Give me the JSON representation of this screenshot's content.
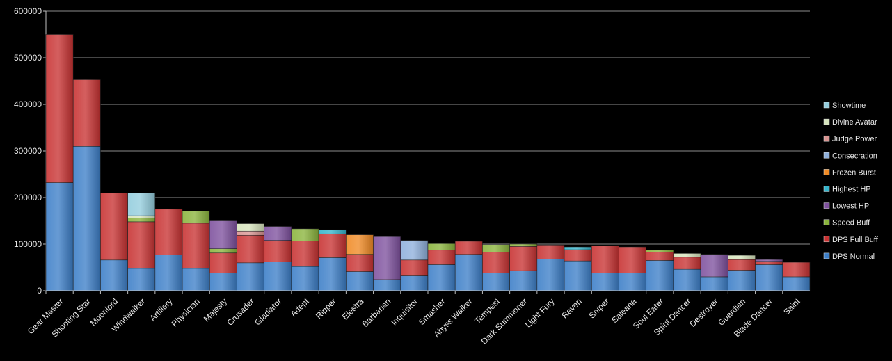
{
  "chart_data": {
    "type": "bar",
    "stacked": true,
    "title": "",
    "xlabel": "",
    "ylabel": "",
    "ylim": [
      0,
      600000
    ],
    "yticks": [
      0,
      100000,
      200000,
      300000,
      400000,
      500000,
      600000
    ],
    "grid": true,
    "legend_position": "right",
    "categories": [
      "Gear Master",
      "Shooting Star",
      "Moonlord",
      "Windwalker",
      "Artillery",
      "Physician",
      "Majesty",
      "Crusader",
      "Gladiator",
      "Adept",
      "Ripper",
      "Elestra",
      "Barbarian",
      "Inquisitor",
      "Smasher",
      "Abyss Walker",
      "Tempest",
      "Dark Summoner",
      "Light Fury",
      "Raven",
      "Sniper",
      "Saleana",
      "Soul Eater",
      "Spirit Dancer",
      "Destroyer",
      "Guardian",
      "Blade Dancer",
      "Saint"
    ],
    "series": [
      {
        "name": "DPS Normal",
        "color": "#3d7fc8",
        "values": [
          232000,
          310000,
          66000,
          48000,
          77000,
          48000,
          38000,
          60000,
          62000,
          52000,
          71000,
          41000,
          24000,
          32000,
          56000,
          78000,
          38000,
          43000,
          68000,
          64000,
          38000,
          38000,
          65000,
          46000,
          30000,
          44000,
          56000,
          30000
        ]
      },
      {
        "name": "DPS Full Buff",
        "color": "#c83232",
        "values": [
          318000,
          143000,
          144000,
          100000,
          98000,
          97000,
          43000,
          59000,
          46000,
          55000,
          51000,
          37000,
          0,
          34000,
          31000,
          28000,
          45000,
          52000,
          30000,
          24000,
          59000,
          56000,
          18000,
          26000,
          0,
          23000,
          7000,
          31000
        ]
      },
      {
        "name": "Speed Buff",
        "color": "#8ab43c",
        "values": [
          0,
          0,
          0,
          8000,
          0,
          26000,
          9000,
          0,
          0,
          26000,
          0,
          0,
          0,
          0,
          14000,
          0,
          16000,
          5000,
          0,
          0,
          0,
          0,
          4000,
          0,
          0,
          0,
          0,
          0
        ]
      },
      {
        "name": "Lowest HP",
        "color": "#7e519e",
        "values": [
          0,
          0,
          0,
          0,
          0,
          0,
          60000,
          0,
          30000,
          0,
          0,
          0,
          92000,
          0,
          0,
          0,
          0,
          0,
          0,
          0,
          0,
          0,
          0,
          0,
          48000,
          0,
          4000,
          0
        ]
      },
      {
        "name": "Highest HP",
        "color": "#35b5cc",
        "values": [
          0,
          0,
          0,
          0,
          0,
          0,
          0,
          0,
          0,
          0,
          9000,
          0,
          0,
          0,
          0,
          0,
          0,
          0,
          0,
          6000,
          0,
          0,
          0,
          0,
          0,
          0,
          0,
          0
        ]
      },
      {
        "name": "Frozen Burst",
        "color": "#f08a24",
        "values": [
          0,
          0,
          0,
          0,
          0,
          0,
          0,
          0,
          0,
          0,
          0,
          42000,
          0,
          0,
          0,
          0,
          0,
          0,
          0,
          0,
          0,
          0,
          0,
          0,
          0,
          0,
          0,
          0
        ]
      },
      {
        "name": "Consecration",
        "color": "#8fb0dc",
        "values": [
          0,
          0,
          0,
          0,
          0,
          0,
          0,
          0,
          0,
          0,
          0,
          0,
          0,
          42000,
          0,
          0,
          0,
          0,
          0,
          0,
          0,
          0,
          0,
          0,
          0,
          0,
          0,
          0
        ]
      },
      {
        "name": "Judge Power",
        "color": "#d99592",
        "values": [
          0,
          0,
          0,
          0,
          0,
          0,
          0,
          9000,
          0,
          0,
          0,
          0,
          0,
          0,
          0,
          0,
          0,
          0,
          0,
          0,
          0,
          0,
          0,
          0,
          0,
          0,
          0,
          0
        ]
      },
      {
        "name": "Divine Avatar",
        "color": "#d7e4bd",
        "values": [
          0,
          0,
          0,
          5000,
          0,
          0,
          0,
          16000,
          0,
          0,
          0,
          0,
          0,
          0,
          0,
          0,
          0,
          0,
          0,
          0,
          0,
          0,
          0,
          8000,
          0,
          9000,
          0,
          0
        ]
      },
      {
        "name": "Showtime",
        "color": "#93cddd",
        "values": [
          0,
          0,
          0,
          49000,
          0,
          0,
          0,
          0,
          0,
          0,
          0,
          0,
          0,
          0,
          0,
          0,
          0,
          0,
          0,
          0,
          0,
          0,
          0,
          0,
          0,
          0,
          0,
          0
        ]
      }
    ]
  }
}
